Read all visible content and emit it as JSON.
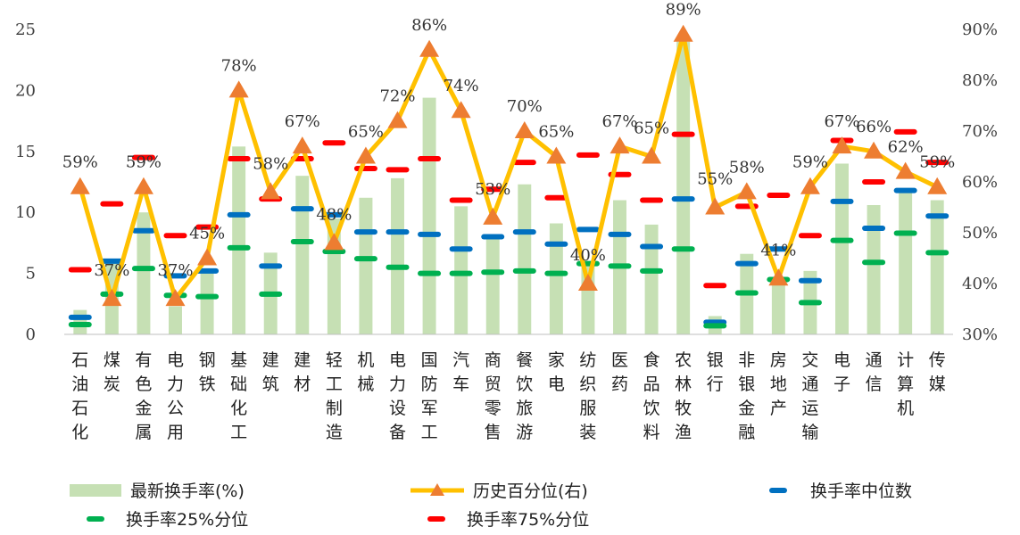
{
  "chart_data": {
    "type": "bar",
    "categories": [
      "石油石化",
      "煤炭",
      "有色金属",
      "电力公用",
      "钢铁",
      "基础化工",
      "建筑",
      "建材",
      "轻工制造",
      "机械",
      "电力设备",
      "国防军工",
      "汽车",
      "商贸零售",
      "餐饮旅游",
      "家电",
      "纺织服装",
      "医药",
      "食品饮料",
      "农林牧渔",
      "银行",
      "非银金融",
      "房地产",
      "交通运输",
      "电子",
      "通信",
      "计算机",
      "传媒"
    ],
    "y_left": {
      "ylim": [
        0,
        25
      ],
      "ticks": [
        "0",
        "5",
        "10",
        "15",
        "20",
        "25"
      ]
    },
    "y_right": {
      "ylim": [
        30,
        90
      ],
      "ticks": [
        "30%",
        "40%",
        "50%",
        "60%",
        "70%",
        "80%",
        "90%"
      ]
    },
    "series": [
      {
        "name": "最新换手率(%)",
        "kind": "bar",
        "axis": "left",
        "color": "#c6e0b4",
        "values": [
          2.0,
          6.0,
          10.0,
          2.3,
          5.2,
          15.4,
          6.7,
          13.0,
          9.5,
          11.2,
          12.8,
          19.4,
          10.5,
          8.2,
          12.3,
          9.1,
          5.8,
          11.0,
          9.0,
          24.0,
          1.5,
          6.6,
          4.5,
          5.2,
          14.0,
          10.6,
          12.0,
          11.0
        ]
      },
      {
        "name": "历史百分位(右)",
        "kind": "line",
        "axis": "right",
        "color": "#ffc000",
        "marker_color": "#ed7d31",
        "values": [
          59,
          37,
          59,
          37,
          45,
          78,
          58,
          67,
          48,
          65,
          72,
          86,
          74,
          53,
          70,
          65,
          40,
          67,
          65,
          89,
          55,
          58,
          41,
          59,
          67,
          66,
          62,
          59
        ],
        "labels": [
          "59%",
          "37%",
          "59%",
          "37%",
          "45%",
          "78%",
          "58%",
          "67%",
          "48%",
          "65%",
          "72%",
          "86%",
          "74%",
          "53%",
          "70%",
          "65%",
          "40%",
          "67%",
          "65%",
          "89%",
          "55%",
          "58%",
          "41%",
          "59%",
          "67%",
          "66%",
          "62%",
          "59%"
        ]
      },
      {
        "name": "换手率中位数",
        "kind": "dash",
        "axis": "left",
        "color": "#0070c0",
        "values": [
          1.4,
          6.0,
          8.5,
          4.8,
          5.2,
          9.8,
          5.6,
          10.3,
          9.8,
          8.4,
          8.4,
          8.2,
          7.0,
          8.0,
          8.4,
          7.4,
          8.6,
          8.2,
          7.2,
          11.1,
          1.0,
          5.8,
          7.0,
          4.4,
          10.9,
          8.7,
          11.8,
          9.7
        ]
      },
      {
        "name": "换手率25%分位",
        "kind": "dash",
        "axis": "left",
        "color": "#00b050",
        "values": [
          0.8,
          3.3,
          5.4,
          3.2,
          3.1,
          7.1,
          3.3,
          7.6,
          6.8,
          6.2,
          5.5,
          5.0,
          5.0,
          5.1,
          5.2,
          5.0,
          5.8,
          5.6,
          5.2,
          7.0,
          0.7,
          3.4,
          4.5,
          2.6,
          7.7,
          5.9,
          8.3,
          6.7
        ]
      },
      {
        "name": "换手率75%分位",
        "kind": "dash",
        "axis": "left",
        "color": "#ff0000",
        "values": [
          5.3,
          10.7,
          14.5,
          8.1,
          8.8,
          14.4,
          11.1,
          14.4,
          15.7,
          13.6,
          13.5,
          14.4,
          11.0,
          11.9,
          14.1,
          11.2,
          14.7,
          13.1,
          11.0,
          16.4,
          4.0,
          10.5,
          11.4,
          8.1,
          15.9,
          12.5,
          16.6,
          14.1
        ]
      }
    ],
    "legend": [
      "最新换手率(%)",
      "历史百分位(右)",
      "换手率中位数",
      "换手率25%分位",
      "换手率75%分位"
    ],
    "legend_position": "bottom"
  }
}
